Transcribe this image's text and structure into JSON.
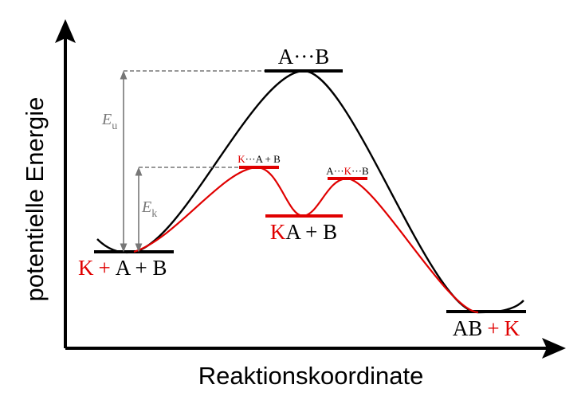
{
  "axes": {
    "x_label": "Reaktionskoordinate",
    "y_label": "potentielle Energie"
  },
  "states": {
    "reactants": {
      "catalyst": "K",
      "plus1": "+",
      "species": "A + B"
    },
    "transition_uncatalyzed": {
      "label": "A···B"
    },
    "transition_catalyzed_1": {
      "catalyst": "K",
      "rest": "···A + B"
    },
    "intermediate": {
      "catalyst": "K",
      "rest": "A + B"
    },
    "transition_catalyzed_2": {
      "a": "A···",
      "catalyst": "K",
      "b": "···B"
    },
    "product": {
      "species": "AB",
      "plus": "+",
      "catalyst": "K"
    }
  },
  "energies": {
    "uncatalyzed": {
      "symbol": "E",
      "subscript": "u"
    },
    "catalyzed": {
      "symbol": "E",
      "subscript": "k"
    }
  },
  "colors": {
    "uncatalyzed_path": "#000000",
    "catalyzed_path": "#e00000",
    "guide": "#777777"
  }
}
